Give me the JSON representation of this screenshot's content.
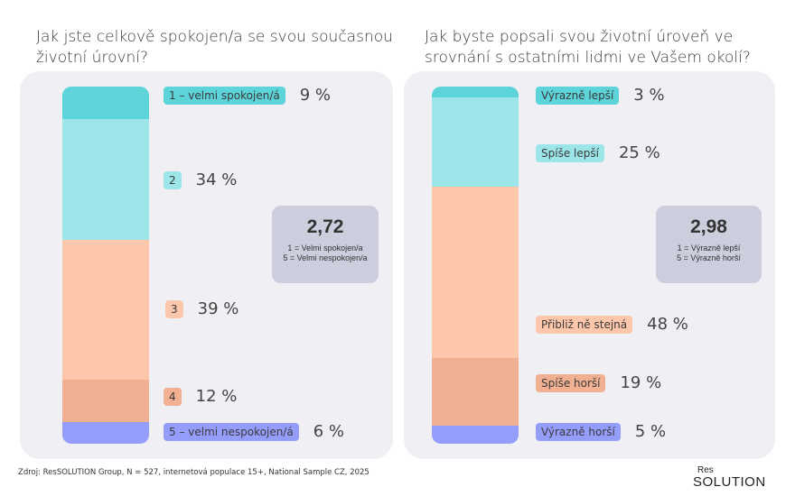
{
  "chart_data": [
    {
      "type": "bar",
      "stacked": true,
      "title": "Jak jste celkově spokojen/a se svou současnou životní úrovní?",
      "categories": [
        "1 – velmi spokojen/á",
        "2",
        "3",
        "4",
        "5 – velmi nespokojen/á"
      ],
      "values": [
        9,
        34,
        39,
        12,
        6
      ],
      "value_labels": [
        "9 %",
        "34 %",
        "39 %",
        "12 %",
        "6 %"
      ],
      "colors": [
        "#5dd4da",
        "#9ce5e8",
        "#fdc7ab",
        "#f0b091",
        "#959dfb"
      ],
      "mean": {
        "value": "2,72",
        "note1": "1 = Velmi spokojen/a",
        "note2": "5 = Velmi nespokojen/a"
      }
    },
    {
      "type": "bar",
      "stacked": true,
      "title": "Jak byste popsali svou životní úroveň ve srovnání s ostatními lidmi ve Vašem okolí?",
      "categories": [
        "Výrazně lepší",
        "Spíše lepší",
        "Přibliž ně stejná",
        "Spíše horší",
        "Výrazně horší"
      ],
      "values": [
        3,
        25,
        48,
        19,
        5
      ],
      "value_labels": [
        "3 %",
        "25 %",
        "48 %",
        "19 %",
        "5 %"
      ],
      "colors": [
        "#5dd4da",
        "#9ce5e8",
        "#fdc7ab",
        "#f0b091",
        "#959dfb"
      ],
      "mean": {
        "value": "2,98",
        "note1": "1 = Výrazně lepší",
        "note2": "5 = Výrazně horší"
      }
    }
  ],
  "footer": {
    "source": "Zdroj: ResSOLUTION Group, N = 527, internetová populace 15+, National Sample CZ, 2025",
    "logo_top": "Res",
    "logo_bottom": "SOLUTION"
  }
}
